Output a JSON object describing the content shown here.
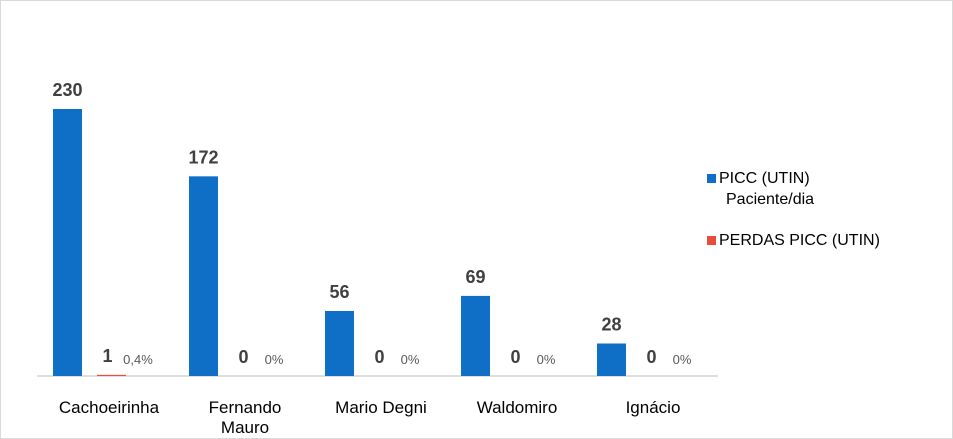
{
  "chart_data": {
    "type": "bar",
    "categories": [
      "Cachoeirinha",
      "Fernando Mauro",
      "Mario Degni",
      "Waldomiro",
      "Ignácio"
    ],
    "category_lines": [
      [
        "Cachoeirinha"
      ],
      [
        "Fernando",
        "Mauro"
      ],
      [
        "Mario Degni"
      ],
      [
        "Waldomiro"
      ],
      [
        "Ignácio"
      ]
    ],
    "series": [
      {
        "name": "PICC (UTIN) Paciente/dia",
        "legend_lines": [
          "PICC (UTIN)",
          "Paciente/dia"
        ],
        "color": "#0f6fc6",
        "values": [
          230,
          172,
          56,
          69,
          28
        ]
      },
      {
        "name": "PERDAS PICC (UTIN)",
        "legend_lines": [
          "PERDAS PICC (UTIN)"
        ],
        "color": "#e84c3d",
        "values": [
          1,
          0,
          0,
          0,
          0
        ]
      }
    ],
    "percent_labels": [
      "0,4%",
      "0%",
      "0%",
      "0%",
      "0%"
    ],
    "ylim": [
      0,
      230
    ],
    "grid": false,
    "legend_position": "right"
  }
}
